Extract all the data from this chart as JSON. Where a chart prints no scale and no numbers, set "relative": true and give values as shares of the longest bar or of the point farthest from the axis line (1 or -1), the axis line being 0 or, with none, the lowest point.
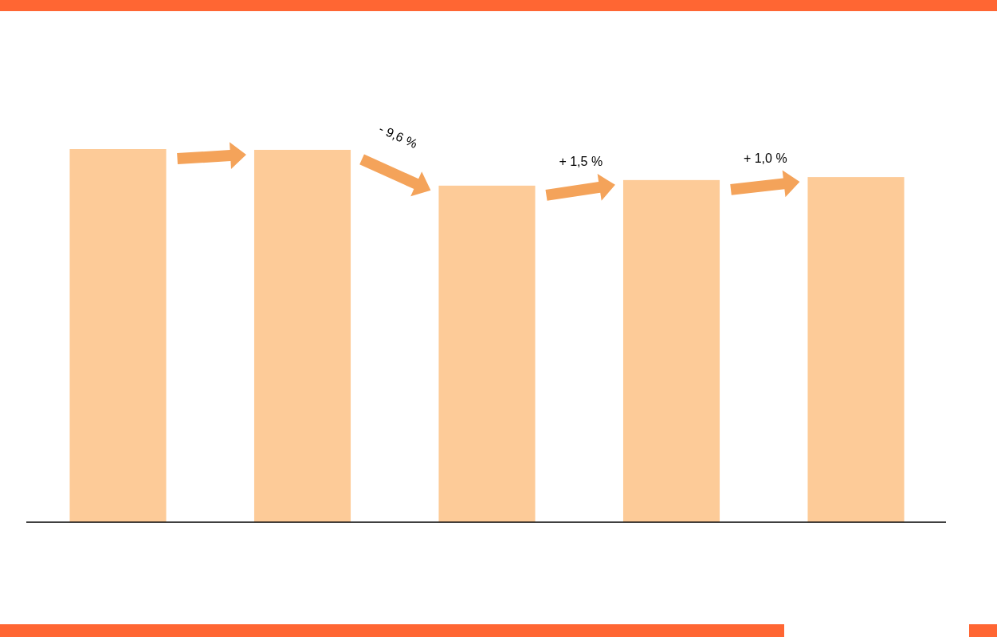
{
  "chart_data": {
    "type": "bar",
    "relative": true,
    "categories": [
      null,
      null,
      null,
      null,
      null
    ],
    "values": [
      1,
      0.998,
      0.902,
      0.917,
      0.925
    ],
    "color": "#fdcb98",
    "annotations": [
      "- 9,6 %",
      "+ 1,5 %",
      "+ 1,0 %"
    ]
  }
}
